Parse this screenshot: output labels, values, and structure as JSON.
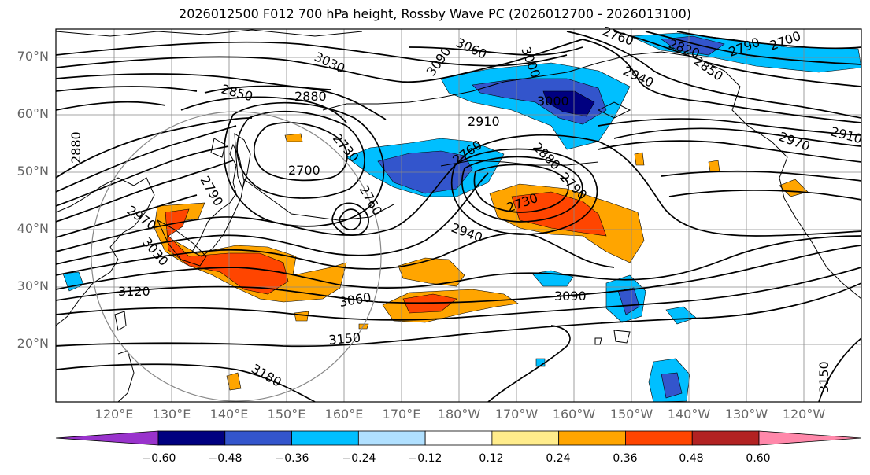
{
  "title": "2026012500 F012 700 hPa height, Rossby Wave PC (2026012700 - 2026013100)",
  "lat_ticks": [
    "70°N",
    "60°N",
    "50°N",
    "40°N",
    "30°N",
    "20°N"
  ],
  "lon_ticks": [
    "120°E",
    "130°E",
    "140°E",
    "150°E",
    "160°E",
    "170°E",
    "180°W",
    "170°W",
    "160°W",
    "150°W",
    "140°W",
    "130°W",
    "120°W"
  ],
  "colorbar": {
    "tick_labels": [
      "−0.60",
      "−0.48",
      "−0.36",
      "−0.24",
      "−0.12",
      "0.12",
      "0.24",
      "0.36",
      "0.48",
      "0.60"
    ],
    "colors": [
      "#9933cc",
      "#000080",
      "#3355cc",
      "#00bfff",
      "#b0e0ff",
      "#ffffff",
      "#ffec8b",
      "#ffa500",
      "#ff4500",
      "#b22222",
      "#ff88aa"
    ]
  },
  "contour_labels": [
    "3060",
    "3000",
    "3090",
    "3030",
    "2850",
    "2880",
    "2730",
    "2700",
    "2790",
    "2760",
    "2880",
    "2970",
    "3030",
    "3120",
    "2910",
    "3000",
    "2940",
    "2820",
    "2850",
    "2790",
    "2700",
    "2760",
    "2970",
    "2910",
    "2880",
    "2760",
    "2730",
    "2790",
    "2940",
    "3060",
    "3090",
    "3150",
    "3180",
    "3150"
  ]
}
